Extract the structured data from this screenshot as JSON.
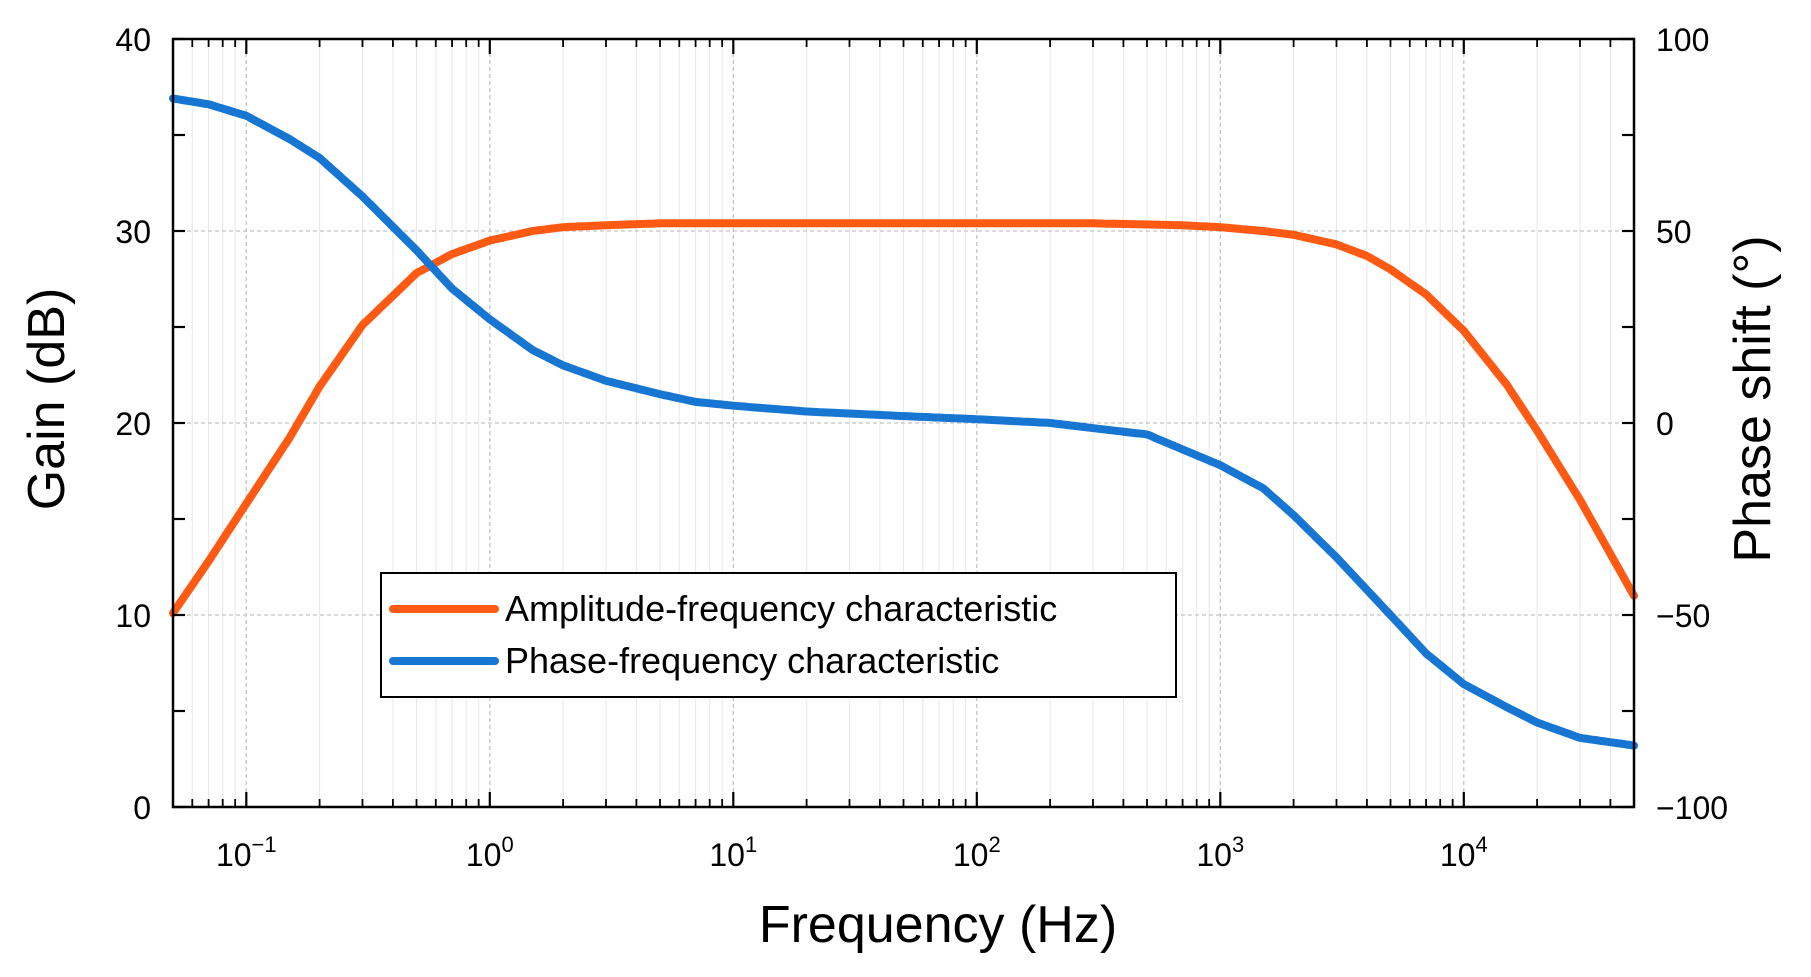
{
  "chart_data": {
    "type": "line",
    "title": "",
    "xlabel": "Frequency (Hz)",
    "ylabel_left": "Gain (dB)",
    "ylabel_right": "Phase shift (°)",
    "x_scale": "log",
    "xlim": [
      0.05,
      50000
    ],
    "ylim_left": [
      0,
      40
    ],
    "ylim_right": [
      -100,
      100
    ],
    "x_ticks": [
      {
        "value": 0.1,
        "base": "10",
        "exp": "−1"
      },
      {
        "value": 1,
        "base": "10",
        "exp": "0"
      },
      {
        "value": 10,
        "base": "10",
        "exp": "1"
      },
      {
        "value": 100,
        "base": "10",
        "exp": "2"
      },
      {
        "value": 1000,
        "base": "10",
        "exp": "3"
      },
      {
        "value": 10000,
        "base": "10",
        "exp": "4"
      }
    ],
    "y_left_ticks": [
      {
        "value": 0,
        "label": "0"
      },
      {
        "value": 10,
        "label": "10"
      },
      {
        "value": 20,
        "label": "20"
      },
      {
        "value": 30,
        "label": "30"
      },
      {
        "value": 40,
        "label": "40"
      }
    ],
    "y_right_ticks": [
      {
        "value": -100,
        "label": "−100"
      },
      {
        "value": -50,
        "label": "−50"
      },
      {
        "value": 0,
        "label": "0"
      },
      {
        "value": 50,
        "label": "50"
      },
      {
        "value": 100,
        "label": "100"
      }
    ],
    "grid": true,
    "legend_position": "center-left",
    "series": [
      {
        "name": "Amplitude-frequency characteristic",
        "axis": "left",
        "color": "#FF5A14",
        "x": [
          0.05,
          0.07,
          0.1,
          0.15,
          0.2,
          0.3,
          0.5,
          0.7,
          1,
          1.5,
          2,
          3,
          5,
          10,
          30,
          100,
          300,
          700,
          1000,
          1500,
          2000,
          3000,
          4000,
          5000,
          7000,
          10000,
          15000,
          20000,
          30000,
          50000
        ],
        "values": [
          10.1,
          12.8,
          15.8,
          19.2,
          21.9,
          25.1,
          27.8,
          28.8,
          29.5,
          30.0,
          30.2,
          30.3,
          30.4,
          30.4,
          30.4,
          30.4,
          30.4,
          30.3,
          30.2,
          30.0,
          29.8,
          29.3,
          28.7,
          28.0,
          26.7,
          24.8,
          22.0,
          19.6,
          16.0,
          11.0
        ]
      },
      {
        "name": "Phase-frequency characteristic",
        "axis": "right",
        "color": "#1776D2",
        "x": [
          0.05,
          0.07,
          0.1,
          0.15,
          0.2,
          0.3,
          0.5,
          0.7,
          1,
          1.5,
          2,
          3,
          5,
          7,
          10,
          20,
          50,
          100,
          200,
          500,
          1000,
          1500,
          2000,
          3000,
          5000,
          7000,
          10000,
          15000,
          20000,
          30000,
          50000
        ],
        "values": [
          84.5,
          83,
          80,
          74,
          69,
          59,
          45,
          35,
          27,
          19,
          15,
          11,
          7.5,
          5.5,
          4.5,
          3,
          1.8,
          1,
          0,
          -3,
          -11,
          -17,
          -24,
          -35,
          -50,
          -60,
          -68,
          -74,
          -78,
          -82,
          -84
        ]
      }
    ]
  }
}
